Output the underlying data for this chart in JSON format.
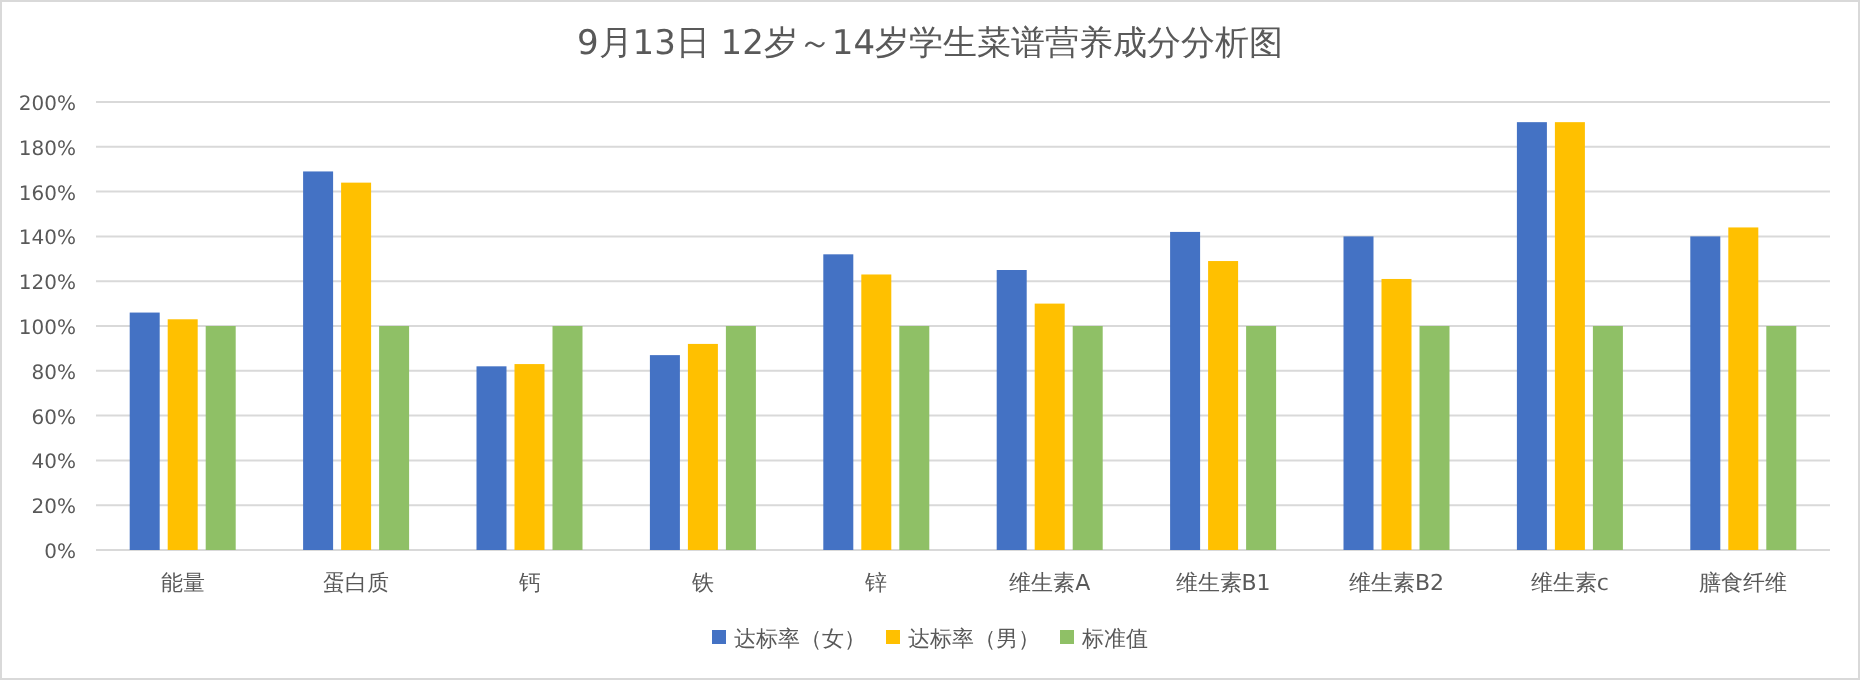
{
  "chart_data": {
    "type": "bar",
    "title": "9月13日 12岁～14岁学生菜谱营养成分分析图",
    "categories": [
      "能量",
      "蛋白质",
      "钙",
      "铁",
      "锌",
      "维生素A",
      "维生素B1",
      "维生素B2",
      "维生素c",
      "膳食纤维"
    ],
    "series": [
      {
        "name": "达标率（女）",
        "color": "#4472c4",
        "values": [
          106,
          169,
          82,
          87,
          132,
          125,
          142,
          140,
          191,
          140
        ]
      },
      {
        "name": "达标率（男）",
        "color": "#ffc000",
        "values": [
          103,
          164,
          83,
          92,
          123,
          110,
          129,
          121,
          191,
          144
        ]
      },
      {
        "name": "标准值",
        "color": "#8fc066",
        "values": [
          100,
          100,
          100,
          100,
          100,
          100,
          100,
          100,
          100,
          100
        ]
      }
    ],
    "ylim": [
      0,
      200
    ],
    "yticks": [
      {
        "value": 0,
        "label": "0%"
      },
      {
        "value": 20,
        "label": "20%"
      },
      {
        "value": 40,
        "label": "40%"
      },
      {
        "value": 60,
        "label": "60%"
      },
      {
        "value": 80,
        "label": "80%"
      },
      {
        "value": 100,
        "label": "100%"
      },
      {
        "value": 120,
        "label": "120%"
      },
      {
        "value": 140,
        "label": "140%"
      },
      {
        "value": 160,
        "label": "160%"
      },
      {
        "value": 180,
        "label": "180%"
      },
      {
        "value": 200,
        "label": "200%"
      }
    ],
    "grid": "y",
    "legend": "bottom"
  }
}
